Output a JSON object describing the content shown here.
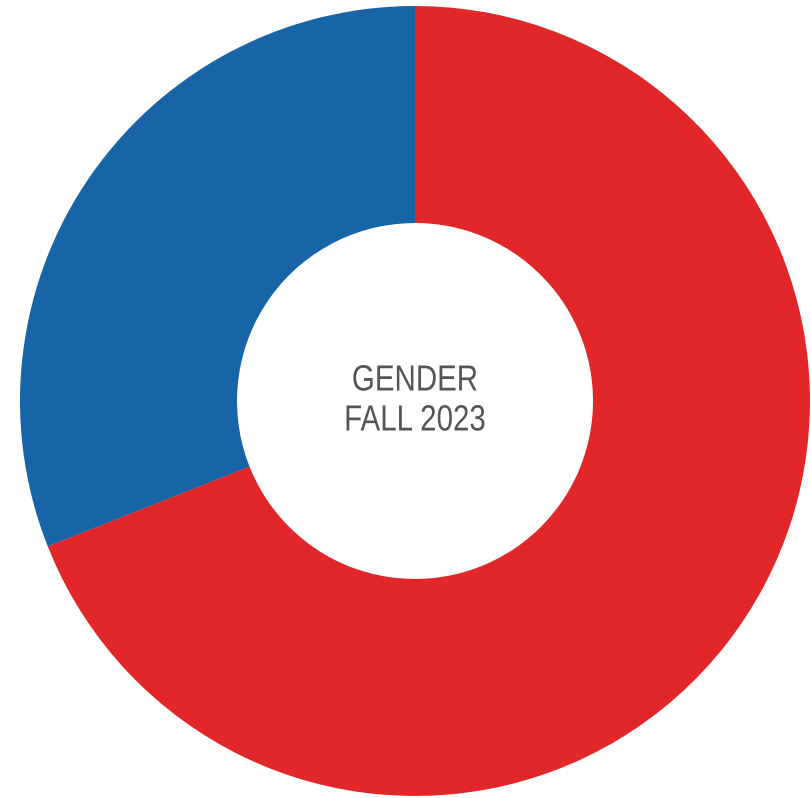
{
  "chart_data": {
    "type": "pie",
    "title_lines": [
      "GENDER",
      "FALL 2023"
    ],
    "values": [
      69,
      31
    ],
    "colors": [
      "#e2272a",
      "#1764a6"
    ]
  }
}
